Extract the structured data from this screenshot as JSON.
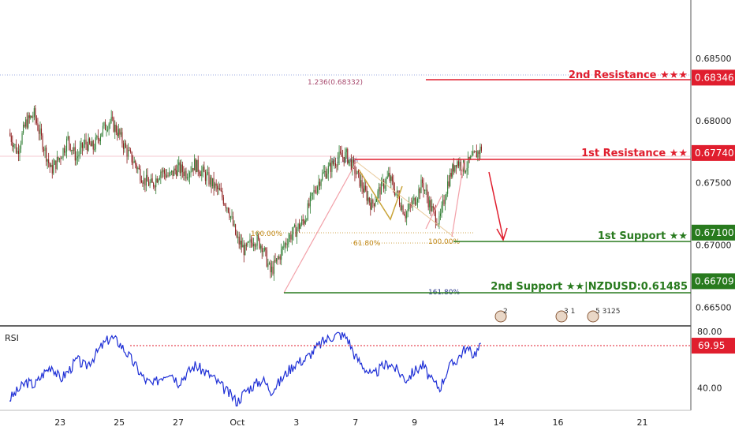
{
  "chart_data": {
    "type": "candlestick",
    "price_axis": {
      "ticks": [
        "0.68500",
        "0.68000",
        "0.67500",
        "0.67000",
        "0.66500"
      ],
      "ylim": [
        0.6635,
        0.6897
      ]
    },
    "rsi_axis": {
      "ticks": [
        "80.00",
        "40.00"
      ],
      "ylim": [
        24,
        84
      ]
    },
    "x_ticks": [
      {
        "label": "23",
        "idx": 6
      },
      {
        "label": "25",
        "idx": 13
      },
      {
        "label": "27",
        "idx": 20
      },
      {
        "label": "Oct",
        "idx": 27
      },
      {
        "label": "3",
        "idx": 34
      },
      {
        "label": "7",
        "idx": 41
      },
      {
        "label": "9",
        "idx": 48
      },
      {
        "label": "14",
        "idx": 58
      },
      {
        "label": "16",
        "idx": 65
      },
      {
        "label": "21",
        "idx": 75
      }
    ],
    "close_path": [
      0.679,
      0.6775,
      0.6798,
      0.6805,
      0.6782,
      0.676,
      0.677,
      0.6785,
      0.677,
      0.6782,
      0.6778,
      0.6792,
      0.68,
      0.679,
      0.6775,
      0.6765,
      0.6752,
      0.6748,
      0.676,
      0.6755,
      0.6762,
      0.6758,
      0.6765,
      0.6758,
      0.675,
      0.6742,
      0.673,
      0.6705,
      0.6695,
      0.6705,
      0.67,
      0.6678,
      0.669,
      0.6705,
      0.6712,
      0.672,
      0.674,
      0.6755,
      0.6762,
      0.677,
      0.6772,
      0.676,
      0.6745,
      0.6732,
      0.6745,
      0.6755,
      0.674,
      0.6725,
      0.6735,
      0.675,
      0.673,
      0.6718,
      0.675,
      0.6768,
      0.6762,
      0.677,
      0.6778
    ],
    "rsi_path": [
      32,
      38,
      44,
      42,
      50,
      56,
      46,
      52,
      60,
      55,
      62,
      70,
      76,
      72,
      64,
      55,
      46,
      42,
      48,
      52,
      44,
      50,
      56,
      52,
      48,
      42,
      36,
      30,
      38,
      42,
      46,
      38,
      44,
      52,
      58,
      60,
      66,
      72,
      76,
      78,
      76,
      62,
      55,
      48,
      54,
      58,
      52,
      46,
      52,
      56,
      45,
      40,
      54,
      60,
      68,
      64,
      70
    ],
    "annotations": {
      "resistance2": {
        "text": "2nd Resistance ★★★",
        "badge": "0.68346",
        "value": 0.68346,
        "color": "#e01e2e"
      },
      "resistance1": {
        "text": "1st Resistance ★★",
        "badge": "0.67740",
        "value": 0.6774,
        "color": "#e01e2e"
      },
      "support1": {
        "text": "1st Support ★★",
        "badge": "0.67100",
        "value": 0.671,
        "color": "#287a1e"
      },
      "support2": {
        "text": "2nd Support ★★|NZDUSD:0.61485",
        "badge": "0.66709",
        "value": 0.66709,
        "color": "#287a1e"
      },
      "rsi_level": {
        "badge": "69.95",
        "value": 69.95,
        "color": "#e01e2e"
      }
    },
    "fib_labels": [
      {
        "text": "1.236(0.68332)",
        "color": "#a84a6e"
      },
      {
        "text": "61.80%",
        "color": "#9d8fc9"
      },
      {
        "text": "100.00%",
        "color": "#c28a1a"
      },
      {
        "text": "61.80%",
        "color": "#c28a1a"
      },
      {
        "text": "100.00%",
        "color": "#c28a1a"
      },
      {
        "text": "161.80%",
        "color": "#2d3a8c"
      }
    ],
    "rsi_label": "RSI",
    "events": [
      "2",
      "3 1",
      "5 3125"
    ],
    "colors": {
      "up": "#2e7d32",
      "down": "#8b1a1a",
      "rsi": "#1e2fd6",
      "axis": "#555555"
    }
  }
}
